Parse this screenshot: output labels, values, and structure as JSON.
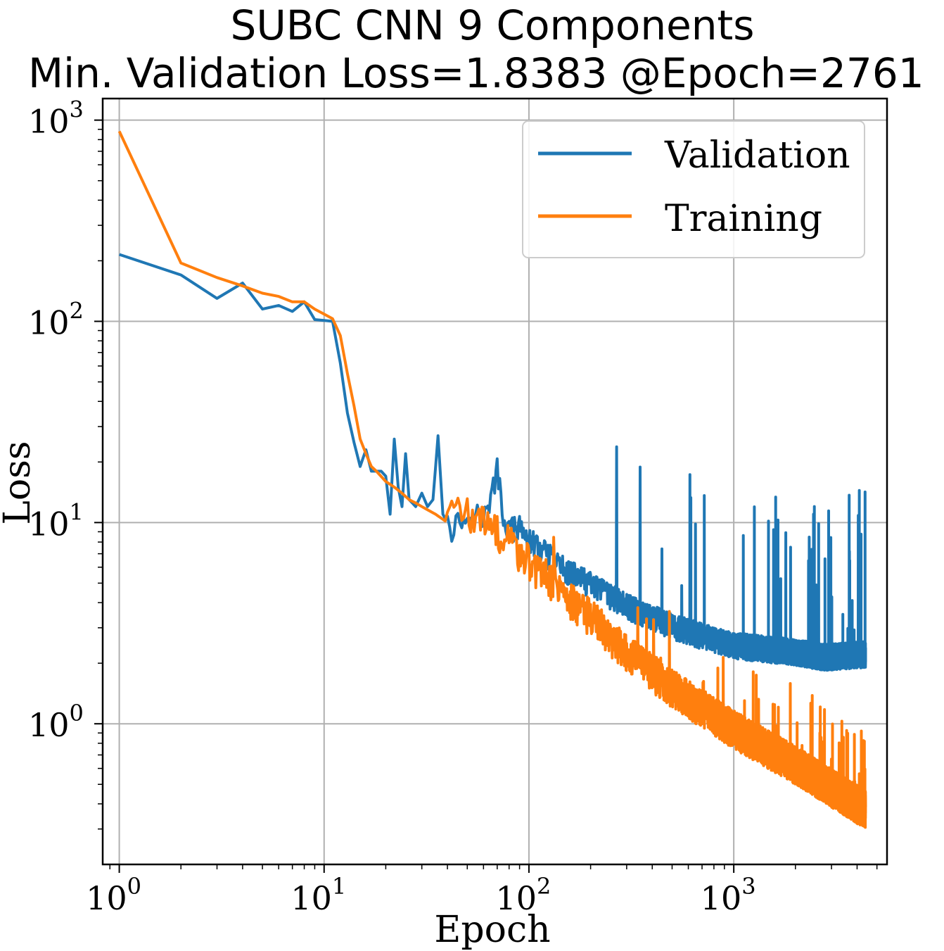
{
  "chart_data": {
    "type": "line",
    "title": "SUBC CNN 9 Components",
    "subtitle": "Min. Validation Loss=1.8383 @Epoch=2761",
    "xlabel": "Epoch",
    "ylabel": "Loss",
    "xscale": "log",
    "yscale": "log",
    "xlim": [
      0.83,
      5600
    ],
    "ylim": [
      0.2,
      1280
    ],
    "x_ticks": [
      {
        "value": 1,
        "base": "10",
        "exp": "0"
      },
      {
        "value": 10,
        "base": "10",
        "exp": "1"
      },
      {
        "value": 100,
        "base": "10",
        "exp": "2"
      },
      {
        "value": 1000,
        "base": "10",
        "exp": "3"
      }
    ],
    "y_ticks": [
      {
        "value": 1,
        "base": "10",
        "exp": "0"
      },
      {
        "value": 10,
        "base": "10",
        "exp": "1"
      },
      {
        "value": 100,
        "base": "10",
        "exp": "2"
      },
      {
        "value": 1000,
        "base": "10",
        "exp": "3"
      }
    ],
    "grid": true,
    "legend_position": "top-right",
    "max_epoch": 4400,
    "series": [
      {
        "name": "Validation",
        "color": "#1f77b4",
        "points": [
          [
            1,
            215
          ],
          [
            2,
            170
          ],
          [
            3,
            130
          ],
          [
            4,
            155
          ],
          [
            5,
            115
          ],
          [
            6,
            120
          ],
          [
            7,
            112
          ],
          [
            8,
            125
          ],
          [
            9,
            102
          ],
          [
            11,
            100
          ],
          [
            12,
            62
          ],
          [
            13,
            35
          ],
          [
            14,
            25
          ],
          [
            15,
            19
          ],
          [
            16,
            23
          ],
          [
            17,
            18
          ],
          [
            18,
            18
          ],
          [
            19,
            18
          ],
          [
            20,
            17
          ],
          [
            21,
            11
          ],
          [
            22,
            26
          ],
          [
            23,
            15
          ],
          [
            24,
            12
          ],
          [
            25,
            22
          ],
          [
            26,
            13
          ],
          [
            28,
            12
          ],
          [
            30,
            14
          ],
          [
            32,
            12
          ],
          [
            34,
            13
          ],
          [
            36,
            27
          ],
          [
            38,
            11
          ],
          [
            40,
            10
          ],
          [
            42,
            8
          ],
          [
            45,
            9
          ],
          [
            50,
            9
          ],
          [
            55,
            10
          ],
          [
            60,
            9
          ],
          [
            65,
            11
          ],
          [
            70,
            16
          ],
          [
            75,
            9
          ],
          [
            80,
            8
          ],
          [
            90,
            8
          ],
          [
            100,
            7
          ],
          [
            120,
            6
          ],
          [
            150,
            5
          ],
          [
            200,
            4.2
          ],
          [
            300,
            3.3
          ],
          [
            500,
            2.6
          ],
          [
            1000,
            2.1
          ],
          [
            2000,
            1.95
          ],
          [
            2761,
            1.8383
          ],
          [
            4400,
            1.9
          ]
        ],
        "noise": {
          "spread": 0.35,
          "spike_max": 11,
          "start_epoch": 40
        }
      },
      {
        "name": "Training",
        "color": "#ff7f0e",
        "points": [
          [
            1,
            880
          ],
          [
            2,
            195
          ],
          [
            3,
            165
          ],
          [
            4,
            150
          ],
          [
            5,
            138
          ],
          [
            6,
            133
          ],
          [
            7,
            125
          ],
          [
            8,
            125
          ],
          [
            9,
            115
          ],
          [
            11,
            103
          ],
          [
            12,
            85
          ],
          [
            13,
            55
          ],
          [
            14,
            38
          ],
          [
            15,
            26
          ],
          [
            16,
            22
          ],
          [
            17,
            19
          ],
          [
            18,
            18
          ],
          [
            20,
            16
          ],
          [
            22,
            15
          ],
          [
            24,
            14
          ],
          [
            26,
            13
          ],
          [
            28,
            12.5
          ],
          [
            30,
            12
          ],
          [
            35,
            11
          ],
          [
            40,
            10
          ],
          [
            50,
            9
          ],
          [
            60,
            8
          ],
          [
            80,
            6.5
          ],
          [
            100,
            5
          ],
          [
            150,
            3.5
          ],
          [
            200,
            2.7
          ],
          [
            300,
            1.8
          ],
          [
            500,
            1.2
          ],
          [
            1000,
            0.75
          ],
          [
            2000,
            0.5
          ],
          [
            4400,
            0.3
          ]
        ],
        "noise": {
          "spread": 0.55,
          "spike_max": 3.5,
          "start_epoch": 40
        }
      }
    ]
  }
}
